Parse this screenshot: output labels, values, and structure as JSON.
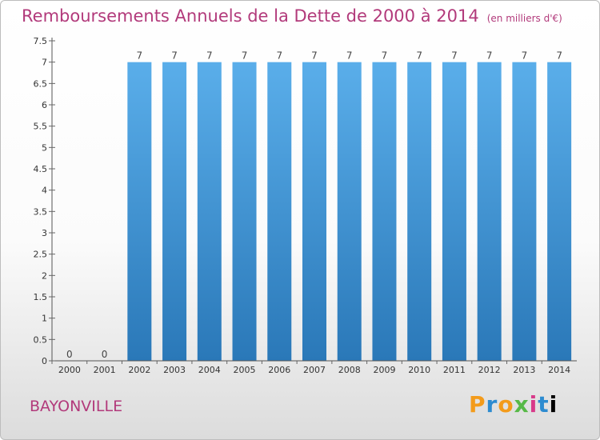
{
  "header": {
    "title": "Remboursements Annuels de la Dette de 2000 à 2014",
    "unit": "(en milliers d'€)"
  },
  "footer": {
    "commune": "BAYONVILLE",
    "brand_letters": [
      "P",
      "r",
      "o",
      "x",
      "i",
      "t",
      "i"
    ]
  },
  "colors": {
    "title": "#b23a7b",
    "bar_top": "#5aaeea",
    "bar_bottom": "#2a78b8"
  },
  "chart_data": {
    "type": "bar",
    "title": "Remboursements Annuels de la Dette de 2000 à 2014",
    "categories": [
      "2000",
      "2001",
      "2002",
      "2003",
      "2004",
      "2005",
      "2006",
      "2007",
      "2008",
      "2009",
      "2010",
      "2011",
      "2012",
      "2013",
      "2014"
    ],
    "values": [
      0,
      0,
      7,
      7,
      7,
      7,
      7,
      7,
      7,
      7,
      7,
      7,
      7,
      7,
      7
    ],
    "data_labels": [
      "0",
      "0",
      "7",
      "7",
      "7",
      "7",
      "7",
      "7",
      "7",
      "7",
      "7",
      "7",
      "7",
      "7",
      "7"
    ],
    "y_ticks": [
      "0",
      "0.5",
      "1",
      "1.5",
      "2",
      "2.5",
      "3",
      "3.5",
      "4",
      "4.5",
      "5",
      "5.5",
      "6",
      "6.5",
      "7",
      "7.5"
    ],
    "ylim": [
      0,
      7.5
    ],
    "xlabel": "",
    "ylabel": "",
    "grid": false
  }
}
